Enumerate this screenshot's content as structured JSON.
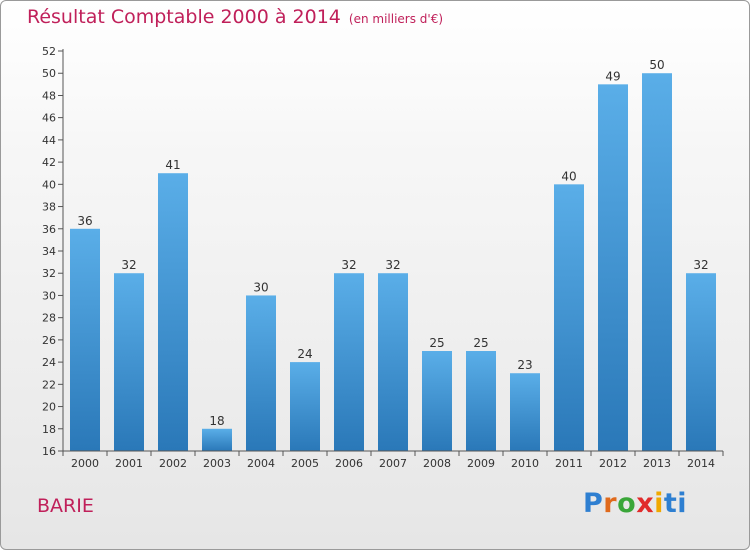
{
  "chart_data": {
    "type": "bar",
    "title": "Résultat Comptable 2000 à 2014",
    "unit_note": "(en milliers d'€)",
    "categories": [
      "2000",
      "2001",
      "2002",
      "2003",
      "2004",
      "2005",
      "2006",
      "2007",
      "2008",
      "2009",
      "2010",
      "2011",
      "2012",
      "2013",
      "2014"
    ],
    "values": [
      36,
      32,
      41,
      18,
      30,
      24,
      32,
      32,
      25,
      25,
      23,
      40,
      49,
      50,
      32
    ],
    "xlabel": "",
    "ylabel": "",
    "ylim": [
      16,
      52
    ],
    "ytick_step": 2,
    "grid": false,
    "bar_color_top": "#5aaee8",
    "bar_color_bottom": "#2a78b8"
  },
  "footer": {
    "commune": "BARIE",
    "logo_letters": [
      "P",
      "r",
      "o",
      "x",
      "i",
      "ti"
    ]
  },
  "colors": {
    "title": "#c0205a",
    "axis": "#555555"
  }
}
